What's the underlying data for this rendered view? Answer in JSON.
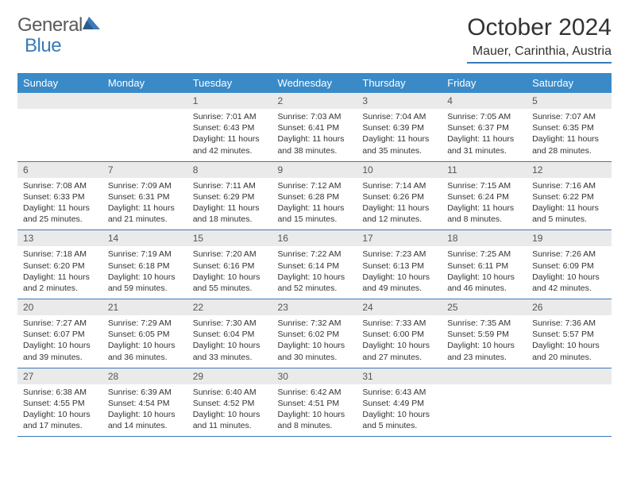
{
  "logo": {
    "text1": "General",
    "text2": "Blue"
  },
  "header": {
    "month_title": "October 2024",
    "location": "Mauer, Carinthia, Austria"
  },
  "colors": {
    "header_bg": "#3a8ac8",
    "header_text": "#ffffff",
    "daynum_bg": "#eaeaea",
    "border": "#3a7ab8",
    "logo_gray": "#5a5a5a",
    "logo_blue": "#3a7ab8"
  },
  "weekdays": [
    "Sunday",
    "Monday",
    "Tuesday",
    "Wednesday",
    "Thursday",
    "Friday",
    "Saturday"
  ],
  "weeks": [
    [
      null,
      null,
      {
        "num": "1",
        "sunrise": "7:01 AM",
        "sunset": "6:43 PM",
        "daylight": "11 hours and 42 minutes."
      },
      {
        "num": "2",
        "sunrise": "7:03 AM",
        "sunset": "6:41 PM",
        "daylight": "11 hours and 38 minutes."
      },
      {
        "num": "3",
        "sunrise": "7:04 AM",
        "sunset": "6:39 PM",
        "daylight": "11 hours and 35 minutes."
      },
      {
        "num": "4",
        "sunrise": "7:05 AM",
        "sunset": "6:37 PM",
        "daylight": "11 hours and 31 minutes."
      },
      {
        "num": "5",
        "sunrise": "7:07 AM",
        "sunset": "6:35 PM",
        "daylight": "11 hours and 28 minutes."
      }
    ],
    [
      {
        "num": "6",
        "sunrise": "7:08 AM",
        "sunset": "6:33 PM",
        "daylight": "11 hours and 25 minutes."
      },
      {
        "num": "7",
        "sunrise": "7:09 AM",
        "sunset": "6:31 PM",
        "daylight": "11 hours and 21 minutes."
      },
      {
        "num": "8",
        "sunrise": "7:11 AM",
        "sunset": "6:29 PM",
        "daylight": "11 hours and 18 minutes."
      },
      {
        "num": "9",
        "sunrise": "7:12 AM",
        "sunset": "6:28 PM",
        "daylight": "11 hours and 15 minutes."
      },
      {
        "num": "10",
        "sunrise": "7:14 AM",
        "sunset": "6:26 PM",
        "daylight": "11 hours and 12 minutes."
      },
      {
        "num": "11",
        "sunrise": "7:15 AM",
        "sunset": "6:24 PM",
        "daylight": "11 hours and 8 minutes."
      },
      {
        "num": "12",
        "sunrise": "7:16 AM",
        "sunset": "6:22 PM",
        "daylight": "11 hours and 5 minutes."
      }
    ],
    [
      {
        "num": "13",
        "sunrise": "7:18 AM",
        "sunset": "6:20 PM",
        "daylight": "11 hours and 2 minutes."
      },
      {
        "num": "14",
        "sunrise": "7:19 AM",
        "sunset": "6:18 PM",
        "daylight": "10 hours and 59 minutes."
      },
      {
        "num": "15",
        "sunrise": "7:20 AM",
        "sunset": "6:16 PM",
        "daylight": "10 hours and 55 minutes."
      },
      {
        "num": "16",
        "sunrise": "7:22 AM",
        "sunset": "6:14 PM",
        "daylight": "10 hours and 52 minutes."
      },
      {
        "num": "17",
        "sunrise": "7:23 AM",
        "sunset": "6:13 PM",
        "daylight": "10 hours and 49 minutes."
      },
      {
        "num": "18",
        "sunrise": "7:25 AM",
        "sunset": "6:11 PM",
        "daylight": "10 hours and 46 minutes."
      },
      {
        "num": "19",
        "sunrise": "7:26 AM",
        "sunset": "6:09 PM",
        "daylight": "10 hours and 42 minutes."
      }
    ],
    [
      {
        "num": "20",
        "sunrise": "7:27 AM",
        "sunset": "6:07 PM",
        "daylight": "10 hours and 39 minutes."
      },
      {
        "num": "21",
        "sunrise": "7:29 AM",
        "sunset": "6:05 PM",
        "daylight": "10 hours and 36 minutes."
      },
      {
        "num": "22",
        "sunrise": "7:30 AM",
        "sunset": "6:04 PM",
        "daylight": "10 hours and 33 minutes."
      },
      {
        "num": "23",
        "sunrise": "7:32 AM",
        "sunset": "6:02 PM",
        "daylight": "10 hours and 30 minutes."
      },
      {
        "num": "24",
        "sunrise": "7:33 AM",
        "sunset": "6:00 PM",
        "daylight": "10 hours and 27 minutes."
      },
      {
        "num": "25",
        "sunrise": "7:35 AM",
        "sunset": "5:59 PM",
        "daylight": "10 hours and 23 minutes."
      },
      {
        "num": "26",
        "sunrise": "7:36 AM",
        "sunset": "5:57 PM",
        "daylight": "10 hours and 20 minutes."
      }
    ],
    [
      {
        "num": "27",
        "sunrise": "6:38 AM",
        "sunset": "4:55 PM",
        "daylight": "10 hours and 17 minutes."
      },
      {
        "num": "28",
        "sunrise": "6:39 AM",
        "sunset": "4:54 PM",
        "daylight": "10 hours and 14 minutes."
      },
      {
        "num": "29",
        "sunrise": "6:40 AM",
        "sunset": "4:52 PM",
        "daylight": "10 hours and 11 minutes."
      },
      {
        "num": "30",
        "sunrise": "6:42 AM",
        "sunset": "4:51 PM",
        "daylight": "10 hours and 8 minutes."
      },
      {
        "num": "31",
        "sunrise": "6:43 AM",
        "sunset": "4:49 PM",
        "daylight": "10 hours and 5 minutes."
      },
      null,
      null
    ]
  ],
  "labels": {
    "sunrise": "Sunrise:",
    "sunset": "Sunset:",
    "daylight": "Daylight:"
  }
}
